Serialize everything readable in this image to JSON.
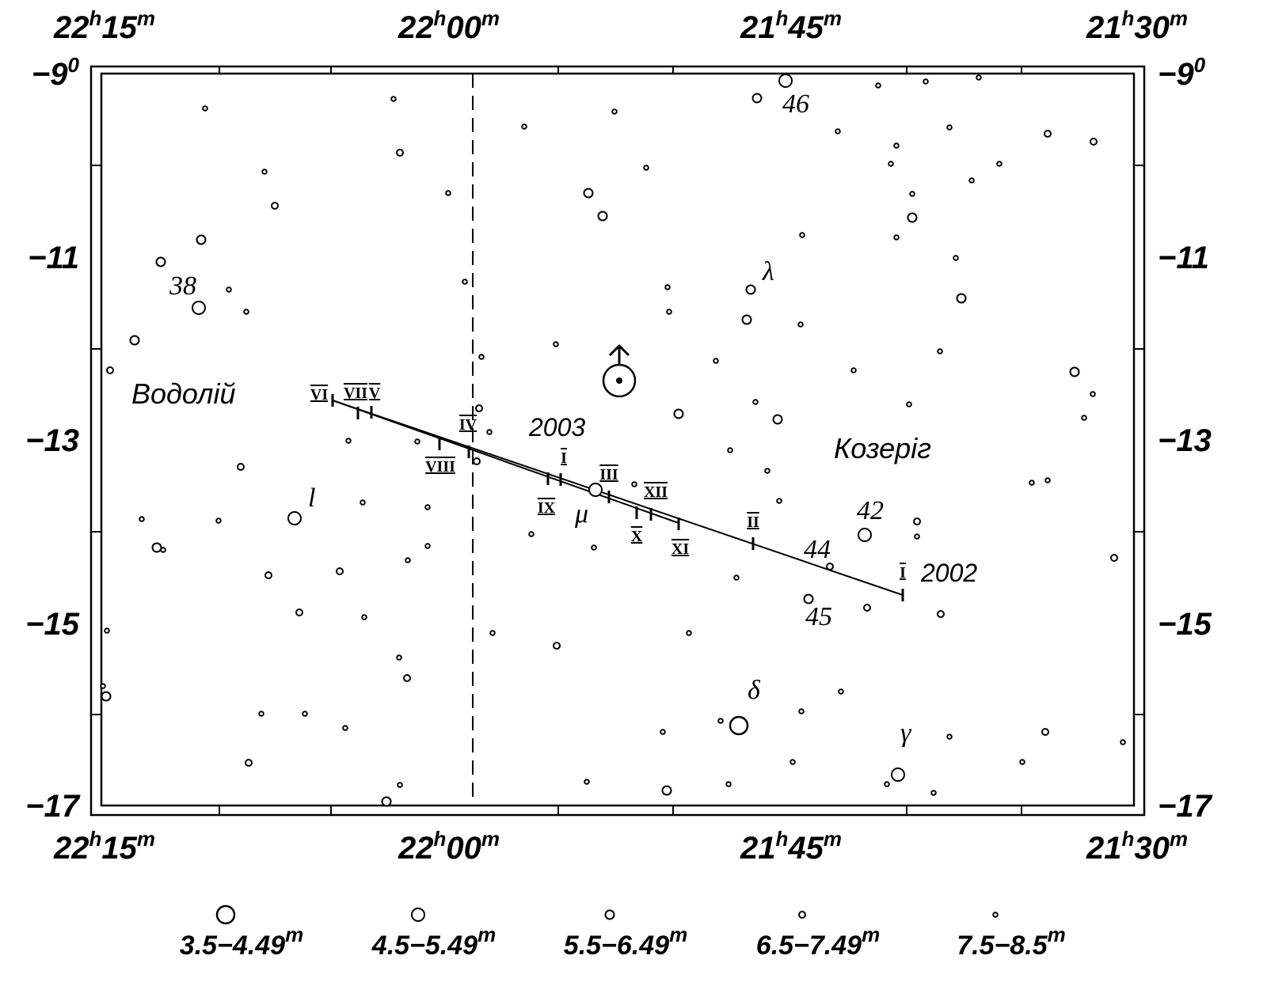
{
  "ra_labels": [
    {
      "hours": "22",
      "minutes": "15"
    },
    {
      "hours": "22",
      "minutes": "00"
    },
    {
      "hours": "21",
      "minutes": "45"
    },
    {
      "hours": "21",
      "minutes": "30"
    }
  ],
  "ra_units": {
    "hours": "h",
    "minutes": "m"
  },
  "dec_labels": [
    "−9",
    "−11",
    "−13",
    "−15",
    "−17"
  ],
  "dec_unit": "0",
  "constellations": [
    "Водолій",
    "Козеріг"
  ],
  "star_labels": [
    "38",
    "46",
    "42",
    "44",
    "45",
    "λ",
    "δ",
    "γ",
    "μ",
    "l"
  ],
  "years": [
    "2003",
    "2002"
  ],
  "mars_positions": [
    "VI",
    "VII",
    "V",
    "VIII",
    "IV",
    "I",
    "IX",
    "III",
    "X",
    "XII",
    "XI",
    "II",
    "I"
  ],
  "legend": {
    "ranges": [
      "3.5−4.49",
      "4.5−5.49",
      "5.5−6.49",
      "6.5−7.49",
      "7.5−8.5"
    ],
    "unit": "m"
  }
}
